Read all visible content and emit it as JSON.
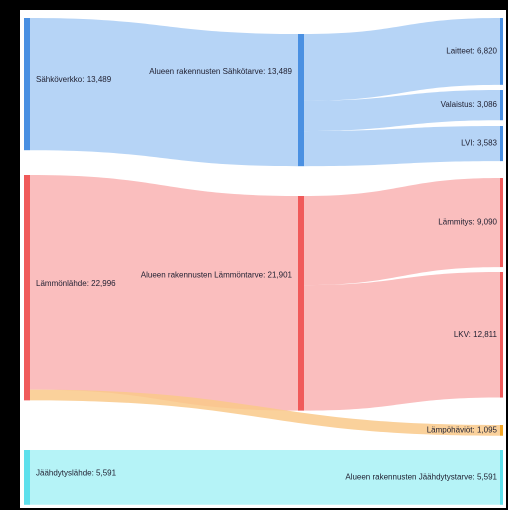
{
  "chart_data": {
    "type": "sankey",
    "nodes": [
      {
        "label": "Sähköverkko: 13,489",
        "value": 13489,
        "color": "#4a90e2"
      },
      {
        "label": "Alueen rakennusten Sähkötarve: 13,489",
        "value": 13489,
        "color": "#4a90e2"
      },
      {
        "label": "Laitteet: 6,820",
        "value": 6820,
        "color": "#4a90e2"
      },
      {
        "label": "Valaistus: 3,086",
        "value": 3086,
        "color": "#4a90e2"
      },
      {
        "label": "LVI: 3,583",
        "value": 3583,
        "color": "#4a90e2"
      },
      {
        "label": "Lämmönlähde: 22,996",
        "value": 22996,
        "color": "#f05a5a"
      },
      {
        "label": "Alueen rakennusten Lämmöntarve: 21,901",
        "value": 21901,
        "color": "#f05a5a"
      },
      {
        "label": "Lämmitys: 9,090",
        "value": 9090,
        "color": "#f05a5a"
      },
      {
        "label": "LKV: 12,811",
        "value": 12811,
        "color": "#f05a5a"
      },
      {
        "label": "Lämpöhäviöt: 1,095",
        "value": 1095,
        "color": "#f5a623"
      },
      {
        "label": "Jäähdytyslähde: 5,591",
        "value": 5591,
        "color": "#5ee0ec"
      },
      {
        "label": "Alueen rakennusten Jäähdytystarve: 5,591",
        "value": 5591,
        "color": "#5ee0ec"
      }
    ],
    "links": [
      {
        "source": 0,
        "target": 1,
        "value": 13489,
        "color": "#a9cdf5"
      },
      {
        "source": 1,
        "target": 2,
        "value": 6820,
        "color": "#a9cdf5"
      },
      {
        "source": 1,
        "target": 3,
        "value": 3086,
        "color": "#a9cdf5"
      },
      {
        "source": 1,
        "target": 4,
        "value": 3583,
        "color": "#a9cdf5"
      },
      {
        "source": 5,
        "target": 6,
        "value": 21901,
        "color": "#f9b3b3"
      },
      {
        "source": 5,
        "target": 9,
        "value": 1095,
        "color": "#f9c98a"
      },
      {
        "source": 6,
        "target": 7,
        "value": 9090,
        "color": "#f9b3b3"
      },
      {
        "source": 6,
        "target": 8,
        "value": 12811,
        "color": "#f9b3b3"
      },
      {
        "source": 10,
        "target": 11,
        "value": 5591,
        "color": "#a8f1f6"
      }
    ]
  }
}
